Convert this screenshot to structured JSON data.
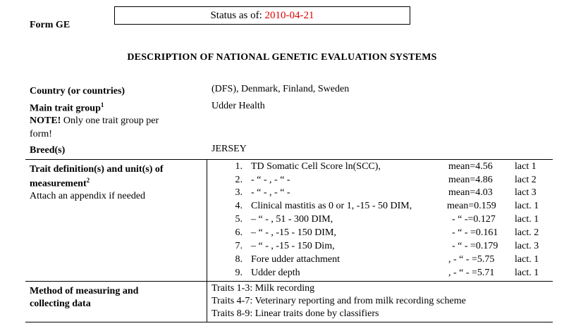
{
  "header": {
    "form_label": "Form GE",
    "status_prefix": "Status as of: ",
    "status_date": "2010-04-21",
    "status_date_color": "#e00000"
  },
  "title": "DESCRIPTION OF NATIONAL GENETIC EVALUATION SYSTEMS",
  "fields": {
    "country_label": "Country (or countries)",
    "country_value": "(DFS), Denmark, Finland, Sweden",
    "trait_group_label": "Main trait group",
    "trait_group_sup": "1",
    "trait_group_value": "Udder Health",
    "note_bold": "NOTE!",
    "note_line1": " Only one trait group per",
    "note_line2": "form!",
    "breed_label": "Breed(s)",
    "breed_value": "JERSEY",
    "trait_def_label_line1": "Trait definition(s) and unit(s) of",
    "trait_def_label_line2": "measurement",
    "trait_def_sup": "2",
    "trait_def_note": "Attach an appendix if needed",
    "method_label_line1": "Method of measuring and",
    "method_label_line2": "collecting data"
  },
  "traits": [
    {
      "num": "1.",
      "a": "TD Somatic Cell Score ln(SCC),",
      "b": "mean=4.56",
      "c": "lact 1"
    },
    {
      "num": "2.",
      "a": "-  “   -                    ,              -  “  -",
      "b": "mean=4.86",
      "c": "lact 2"
    },
    {
      "num": "3.",
      "a": "-  “   -                    ,              -  “  -",
      "b": "mean=4.03",
      "c": "lact 3"
    },
    {
      "num": "4.",
      "a": "Clinical mastitis as 0 or 1, -15 - 50 DIM,",
      "b": "mean=0.159",
      "c": "lact. 1"
    },
    {
      "num": "5.",
      "a": "– “ -                                  , 51 - 300 DIM,",
      "b": "- “ -=0.127",
      "c": "lact. 1"
    },
    {
      "num": "6.",
      "a": "–  “ -                                 , -15 - 150 DIM,",
      "b": "- “ - =0.161",
      "c": "lact. 2"
    },
    {
      "num": "7.",
      "a": "– “ -                                  , -15 - 150  Dim,",
      "b": "- “ - =0.179",
      "c": "lact. 3"
    },
    {
      "num": "8.",
      "a": "Fore udder attachment",
      "b": ", - “ - =5.75",
      "c": "lact. 1"
    },
    {
      "num": "9.",
      "a": "Udder depth",
      "b": ", - “ - =5.71",
      "c": "lact. 1"
    }
  ],
  "methods": [
    "Traits 1-3: Milk recording",
    "Traits 4-7: Veterinary reporting and from milk recording scheme",
    "Traits 8-9: Linear traits done by classifiers"
  ]
}
